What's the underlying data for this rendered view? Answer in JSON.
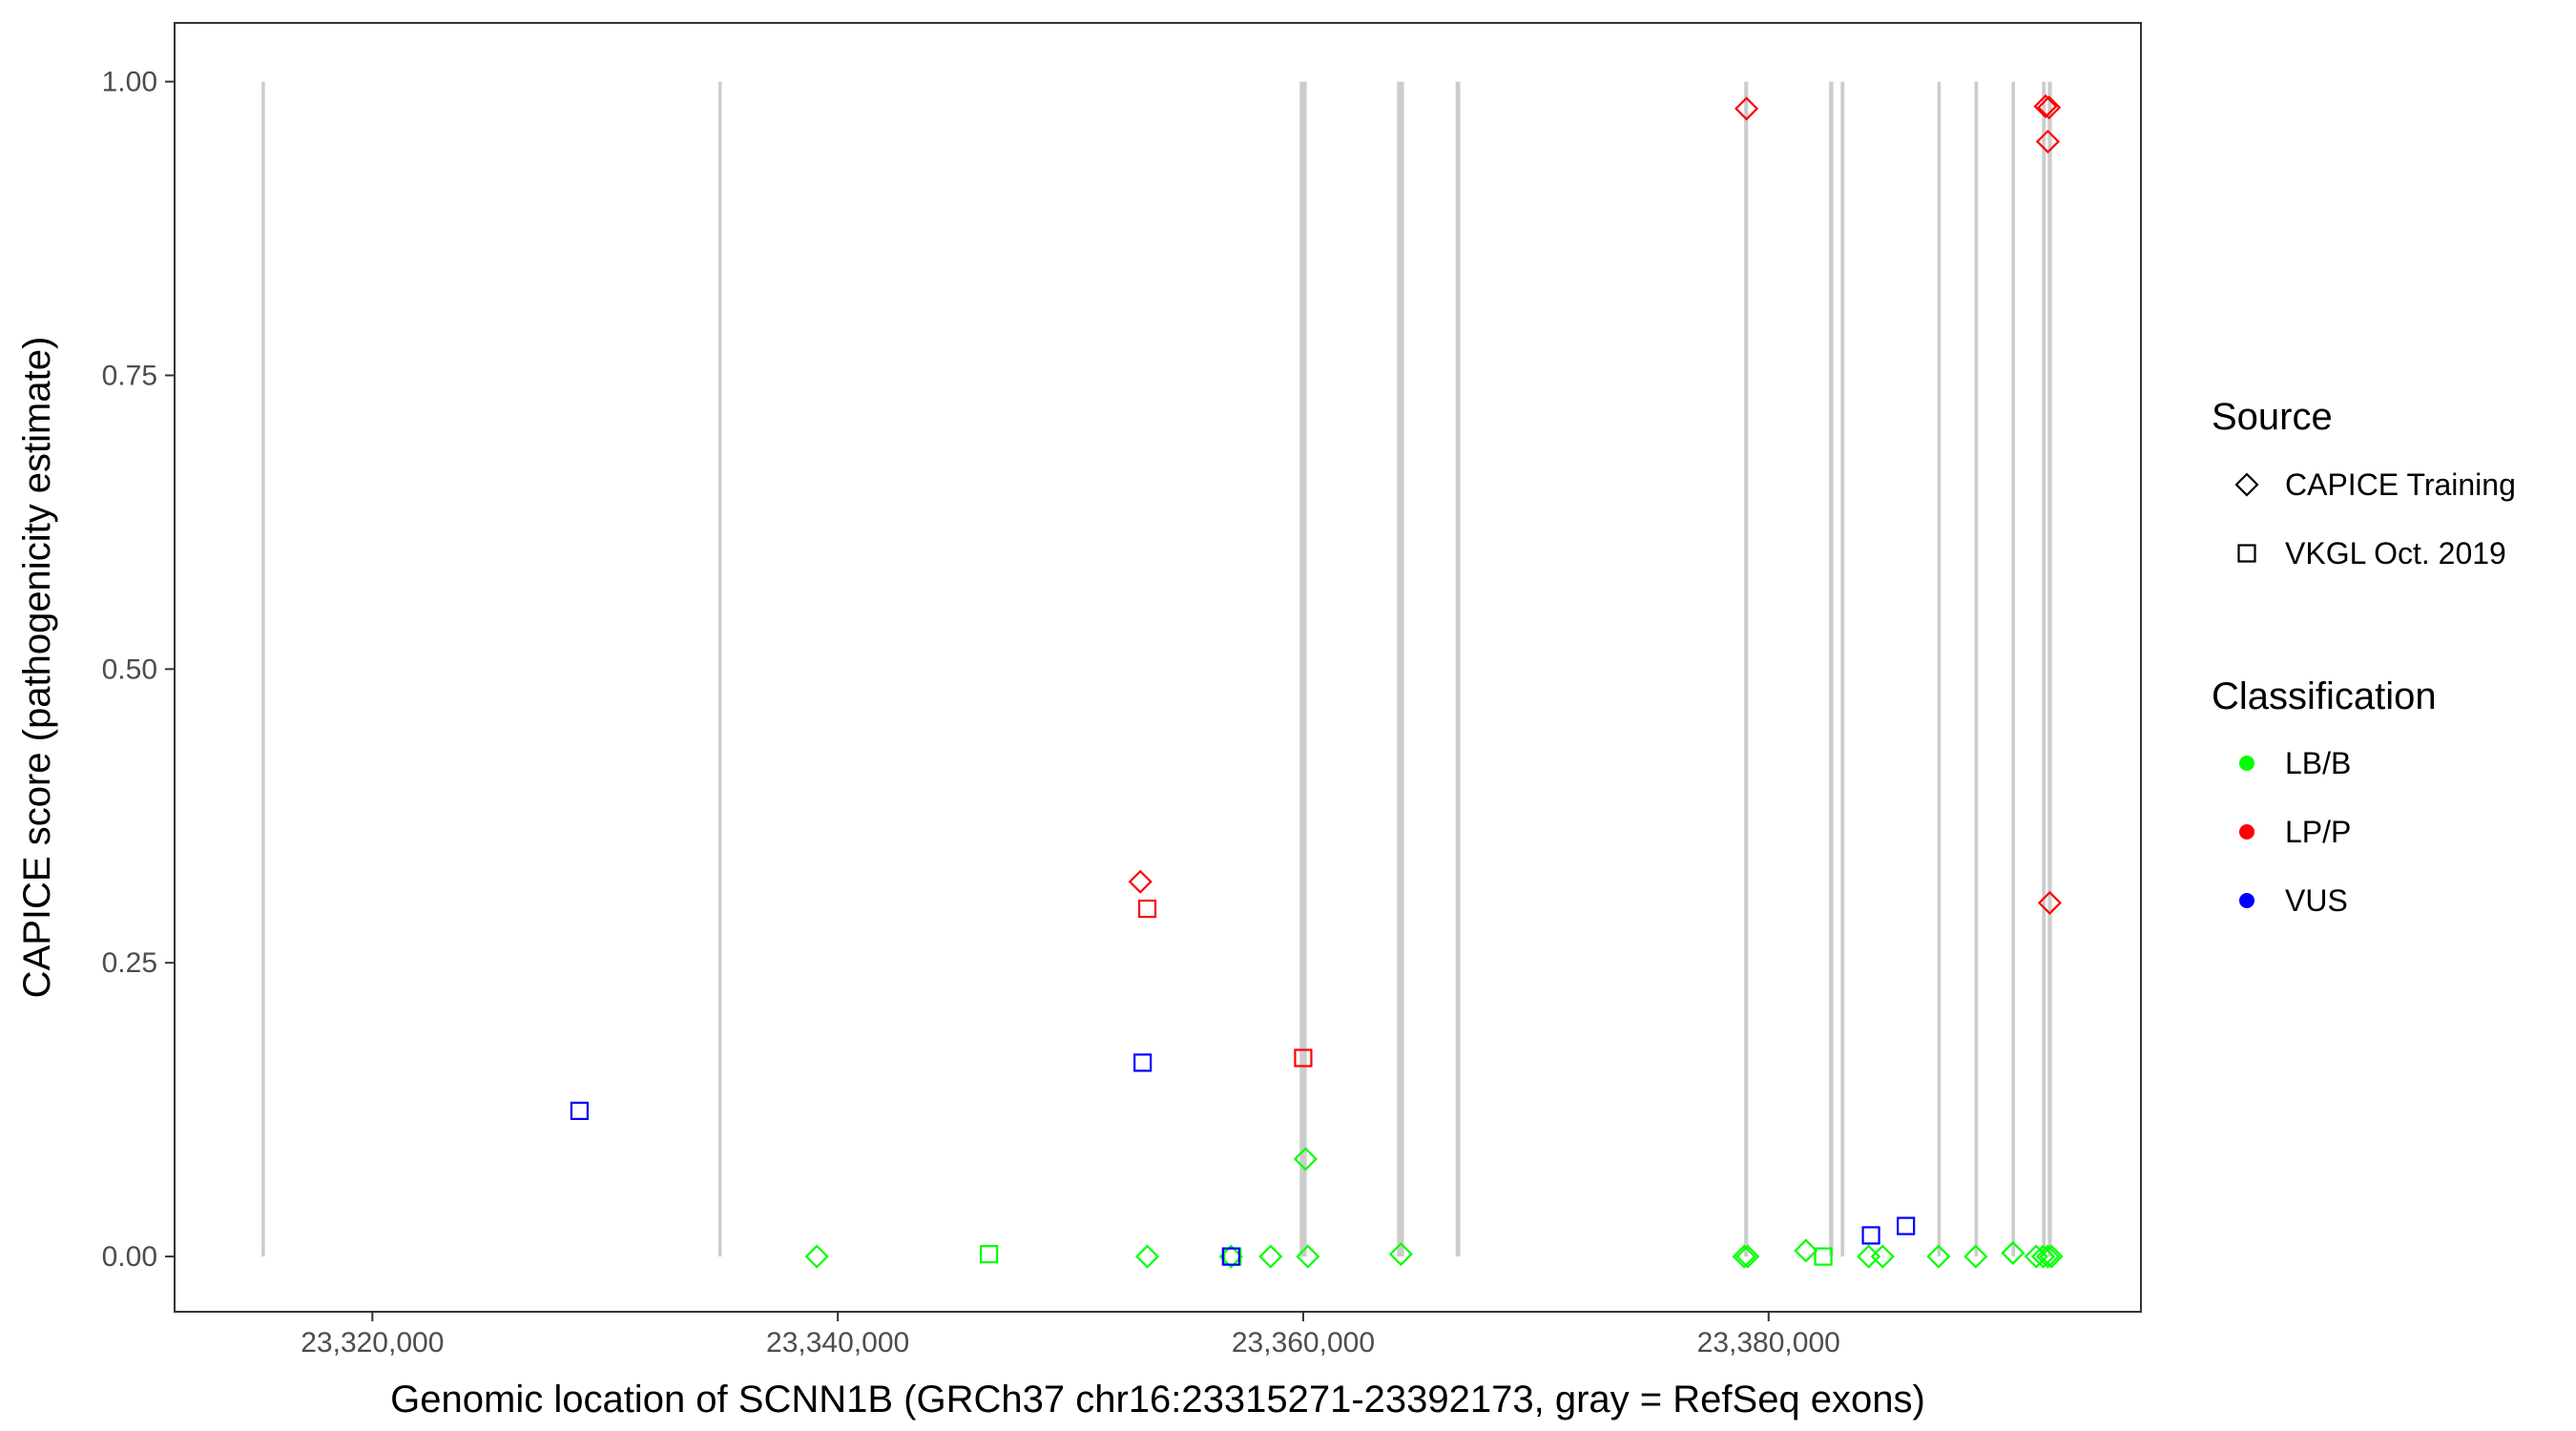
{
  "chart_data": {
    "type": "scatter",
    "xlabel": "Genomic location of SCNN1B (GRCh37 chr16:23315271-23392173, gray = RefSeq exons)",
    "ylabel": "CAPICE score (pathogenicity estimate)",
    "xlim": [
      23311500,
      23396000
    ],
    "ylim": [
      -0.047,
      1.05
    ],
    "x_ticks": [
      23320000,
      23340000,
      23360000,
      23380000
    ],
    "x_tick_labels": [
      "23,320,000",
      "23,340,000",
      "23,360,000",
      "23,380,000"
    ],
    "y_ticks": [
      0,
      0.25,
      0.5,
      0.75,
      1.0
    ],
    "y_tick_labels": [
      "0.00",
      "0.25",
      "0.50",
      "0.75",
      "1.00"
    ],
    "grid": false,
    "exons": [
      {
        "start": 23315271,
        "end": 23315350
      },
      {
        "start": 23334900,
        "end": 23334980
      },
      {
        "start": 23359850,
        "end": 23360150
      },
      {
        "start": 23364030,
        "end": 23364330
      },
      {
        "start": 23366550,
        "end": 23366750
      },
      {
        "start": 23378950,
        "end": 23379120
      },
      {
        "start": 23382600,
        "end": 23382780
      },
      {
        "start": 23383100,
        "end": 23383250
      },
      {
        "start": 23387250,
        "end": 23387400
      },
      {
        "start": 23388850,
        "end": 23389000
      },
      {
        "start": 23390450,
        "end": 23390580
      },
      {
        "start": 23391750,
        "end": 23391900
      },
      {
        "start": 23392000,
        "end": 23392173
      }
    ],
    "legend": {
      "placement": "right",
      "source_title": "Source",
      "source_entries": [
        {
          "label": "CAPICE Training",
          "shape": "diamond"
        },
        {
          "label": "VKGL Oct. 2019",
          "shape": "square"
        }
      ],
      "classification_title": "Classification",
      "classification_entries": [
        {
          "label": "LB/B",
          "color": "#00ff00"
        },
        {
          "label": "LP/P",
          "color": "#ff0000"
        },
        {
          "label": "VUS",
          "color": "#0000ff"
        }
      ]
    },
    "colors": {
      "LB/B": "#00ff00",
      "LP/P": "#ff0000",
      "VUS": "#0000ff",
      "exon": "#cccccc"
    },
    "points": [
      {
        "x": 23339100,
        "y": 0.0,
        "source": "CAPICE Training",
        "class": "LB/B"
      },
      {
        "x": 23353300,
        "y": 0.0,
        "source": "CAPICE Training",
        "class": "LB/B"
      },
      {
        "x": 23356900,
        "y": 0.0,
        "source": "CAPICE Training",
        "class": "LB/B"
      },
      {
        "x": 23358600,
        "y": 0.0,
        "source": "CAPICE Training",
        "class": "LB/B"
      },
      {
        "x": 23360200,
        "y": 0.0,
        "source": "CAPICE Training",
        "class": "LB/B"
      },
      {
        "x": 23360100,
        "y": 0.083,
        "source": "CAPICE Training",
        "class": "LB/B"
      },
      {
        "x": 23364200,
        "y": 0.002,
        "source": "CAPICE Training",
        "class": "LB/B"
      },
      {
        "x": 23378950,
        "y": 0.0,
        "source": "CAPICE Training",
        "class": "LB/B"
      },
      {
        "x": 23379100,
        "y": 0.0,
        "source": "CAPICE Training",
        "class": "LB/B"
      },
      {
        "x": 23381600,
        "y": 0.005,
        "source": "CAPICE Training",
        "class": "LB/B"
      },
      {
        "x": 23384300,
        "y": 0.0,
        "source": "CAPICE Training",
        "class": "LB/B"
      },
      {
        "x": 23384900,
        "y": 0.0,
        "source": "CAPICE Training",
        "class": "LB/B"
      },
      {
        "x": 23387300,
        "y": 0.0,
        "source": "CAPICE Training",
        "class": "LB/B"
      },
      {
        "x": 23388900,
        "y": 0.0,
        "source": "CAPICE Training",
        "class": "LB/B"
      },
      {
        "x": 23390500,
        "y": 0.003,
        "source": "CAPICE Training",
        "class": "LB/B"
      },
      {
        "x": 23391500,
        "y": 0.0,
        "source": "CAPICE Training",
        "class": "LB/B"
      },
      {
        "x": 23391800,
        "y": 0.0,
        "source": "CAPICE Training",
        "class": "LB/B"
      },
      {
        "x": 23392000,
        "y": 0.0,
        "source": "CAPICE Training",
        "class": "LB/B"
      },
      {
        "x": 23392150,
        "y": 0.0,
        "source": "CAPICE Training",
        "class": "LB/B"
      },
      {
        "x": 23353000,
        "y": 0.319,
        "source": "CAPICE Training",
        "class": "LP/P"
      },
      {
        "x": 23379050,
        "y": 0.977,
        "source": "CAPICE Training",
        "class": "LP/P"
      },
      {
        "x": 23391900,
        "y": 0.979,
        "source": "CAPICE Training",
        "class": "LP/P"
      },
      {
        "x": 23392050,
        "y": 0.978,
        "source": "CAPICE Training",
        "class": "LP/P"
      },
      {
        "x": 23392000,
        "y": 0.949,
        "source": "CAPICE Training",
        "class": "LP/P"
      },
      {
        "x": 23392080,
        "y": 0.301,
        "source": "CAPICE Training",
        "class": "LP/P"
      },
      {
        "x": 23346500,
        "y": 0.002,
        "source": "VKGL Oct. 2019",
        "class": "LB/B"
      },
      {
        "x": 23356950,
        "y": 0.0,
        "source": "VKGL Oct. 2019",
        "class": "LB/B"
      },
      {
        "x": 23382350,
        "y": 0.0,
        "source": "VKGL Oct. 2019",
        "class": "LB/B"
      },
      {
        "x": 23353300,
        "y": 0.296,
        "source": "VKGL Oct. 2019",
        "class": "LP/P"
      },
      {
        "x": 23360000,
        "y": 0.169,
        "source": "VKGL Oct. 2019",
        "class": "LP/P"
      },
      {
        "x": 23328900,
        "y": 0.124,
        "source": "VKGL Oct. 2019",
        "class": "VUS"
      },
      {
        "x": 23353100,
        "y": 0.165,
        "source": "VKGL Oct. 2019",
        "class": "VUS"
      },
      {
        "x": 23356900,
        "y": 0.0,
        "source": "VKGL Oct. 2019",
        "class": "VUS"
      },
      {
        "x": 23384400,
        "y": 0.018,
        "source": "VKGL Oct. 2019",
        "class": "VUS"
      },
      {
        "x": 23385900,
        "y": 0.026,
        "source": "VKGL Oct. 2019",
        "class": "VUS"
      }
    ]
  }
}
